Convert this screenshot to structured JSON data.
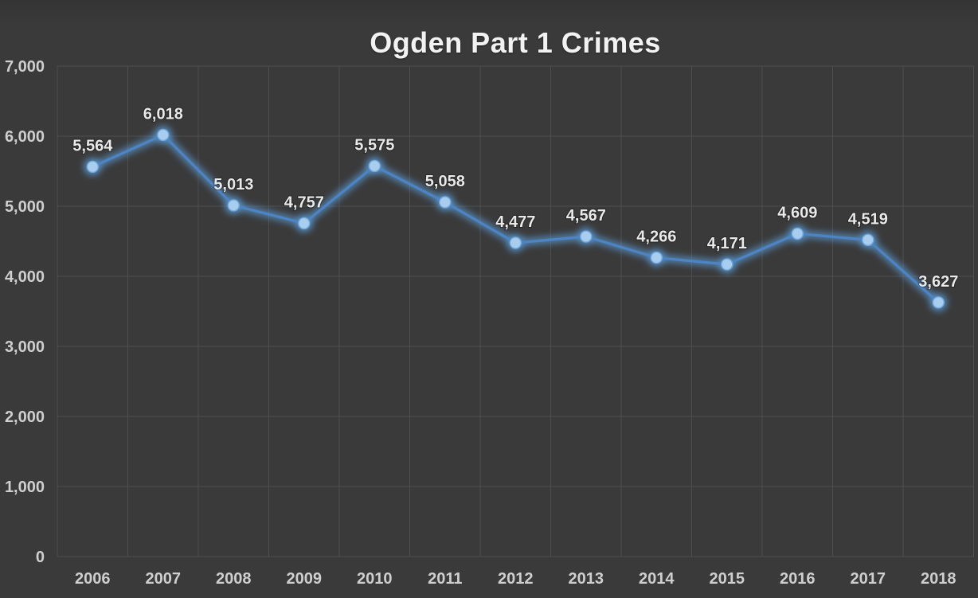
{
  "page": {
    "background": "#3a3a3a"
  },
  "chart_data": {
    "type": "line",
    "title": "Ogden Part 1 Crimes",
    "categories": [
      "2006",
      "2007",
      "2008",
      "2009",
      "2010",
      "2011",
      "2012",
      "2013",
      "2014",
      "2015",
      "2016",
      "2017",
      "2018"
    ],
    "values": [
      5564,
      6018,
      5013,
      4757,
      5575,
      5058,
      4477,
      4567,
      4266,
      4171,
      4609,
      4519,
      3627
    ],
    "xlabel": "",
    "ylabel": "",
    "ylim": [
      0,
      7000
    ],
    "y_ticks": [
      0,
      1000,
      2000,
      3000,
      4000,
      5000,
      6000,
      7000
    ],
    "grid": true,
    "legend_position": "none",
    "data_labels": true,
    "colors": {
      "background": "#3a3a3a",
      "grid": "#4e4e4e",
      "line": "#4d84c4",
      "line_glow": "#5b9bd5",
      "marker_fill": "#a9cdef",
      "marker_edge": "#74a9dd",
      "title_text": "#f2f2f2",
      "axis_text": "#cfcfcf",
      "label_text": "#e9e9e9"
    }
  }
}
